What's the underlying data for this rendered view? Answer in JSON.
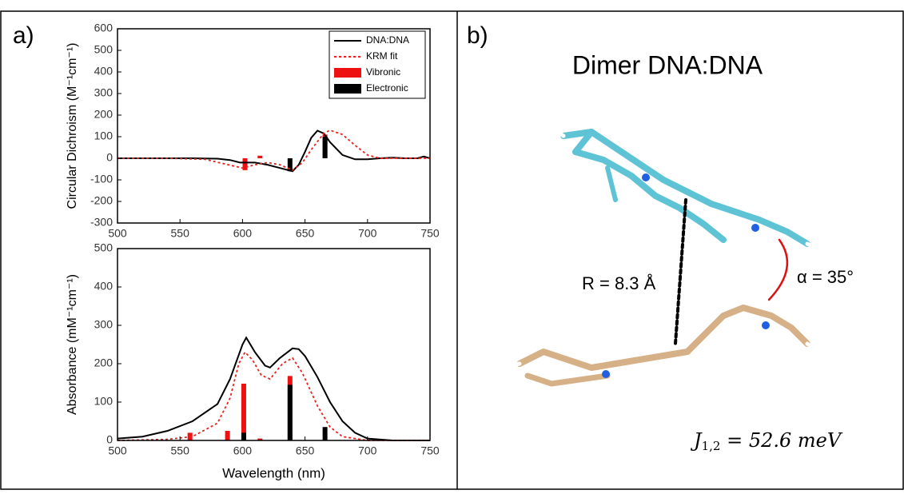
{
  "panel_labels": [
    "a)",
    "b)"
  ],
  "chart_data": [
    {
      "type": "line",
      "ylabel": "Circular Dichroism (M⁻¹cm⁻¹)",
      "xlim": [
        500,
        750
      ],
      "xticks": [
        500,
        550,
        600,
        650,
        700,
        750
      ],
      "ylim": [
        -300,
        600
      ],
      "yticks": [
        -300,
        -200,
        -100,
        0,
        100,
        200,
        300,
        400,
        500,
        600
      ],
      "legend": "upper right",
      "series": [
        {
          "name": "DNA:DNA",
          "color": "#000000",
          "kind": "line",
          "style": "solid",
          "x": [
            500,
            520,
            540,
            560,
            580,
            590,
            598,
            610,
            620,
            630,
            640,
            645,
            650,
            655,
            660,
            665,
            670,
            680,
            690,
            700,
            710,
            720,
            730,
            740,
            745,
            750
          ],
          "values": [
            0,
            0,
            0,
            0,
            -2,
            -8,
            -20,
            -20,
            -30,
            -45,
            -60,
            -30,
            30,
            95,
            128,
            115,
            75,
            15,
            -5,
            -5,
            0,
            3,
            0,
            0,
            8,
            0
          ]
        },
        {
          "name": "KRM fit",
          "color": "#e8221e",
          "kind": "line",
          "style": "dotted",
          "x": [
            500,
            540,
            570,
            585,
            600,
            610,
            620,
            630,
            640,
            648,
            655,
            665,
            670,
            680,
            690,
            700,
            710,
            750
          ],
          "values": [
            0,
            0,
            -5,
            -25,
            -45,
            -30,
            -20,
            -30,
            -55,
            -20,
            40,
            115,
            130,
            110,
            60,
            15,
            0,
            0
          ]
        },
        {
          "name": "Vibronic",
          "color": "#ee1111",
          "kind": "bar",
          "x": [
            602,
            614,
            666
          ],
          "values": [
            -55,
            12,
            110
          ]
        },
        {
          "name": "Electronic",
          "color": "#000000",
          "kind": "bar",
          "x": [
            638,
            666
          ],
          "values": [
            -60,
            100
          ]
        }
      ]
    },
    {
      "type": "line",
      "xlabel": "Wavelength (nm)",
      "ylabel": "Absorbance (mM⁻¹cm⁻¹)",
      "xlim": [
        500,
        750
      ],
      "xticks": [
        500,
        550,
        600,
        650,
        700,
        750
      ],
      "ylim": [
        0,
        500
      ],
      "yticks": [
        0,
        100,
        200,
        300,
        400,
        500
      ],
      "series": [
        {
          "color": "#000000",
          "kind": "line",
          "style": "solid",
          "x": [
            500,
            520,
            540,
            560,
            580,
            590,
            600,
            603,
            610,
            618,
            622,
            630,
            640,
            645,
            650,
            660,
            670,
            680,
            690,
            700,
            720,
            750
          ],
          "values": [
            5,
            10,
            25,
            50,
            95,
            160,
            250,
            268,
            230,
            195,
            190,
            215,
            240,
            238,
            220,
            165,
            100,
            50,
            20,
            5,
            0,
            0
          ]
        },
        {
          "color": "#e8221e",
          "kind": "line",
          "style": "dotted",
          "x": [
            500,
            540,
            560,
            580,
            590,
            597,
            602,
            608,
            615,
            622,
            632,
            640,
            648,
            660,
            670,
            680,
            700,
            750
          ],
          "values": [
            0,
            3,
            10,
            45,
            110,
            200,
            230,
            210,
            170,
            160,
            200,
            215,
            175,
            90,
            35,
            10,
            0,
            0
          ]
        },
        {
          "color": "#ee1111",
          "kind": "bar",
          "x": [
            558,
            588,
            601,
            614,
            638
          ],
          "values": [
            20,
            25,
            148,
            5,
            168
          ]
        },
        {
          "color": "#000000",
          "kind": "bar",
          "x": [
            601,
            638,
            666
          ],
          "values": [
            20,
            145,
            35
          ]
        }
      ]
    }
  ],
  "panel_b": {
    "title": "Dimer DNA:DNA",
    "distance": "R = 8.3 Å",
    "angle": "α = 35°",
    "coupling": {
      "symbol": "J",
      "subscript": "1,2",
      "value": " = 52.6 meV"
    }
  }
}
